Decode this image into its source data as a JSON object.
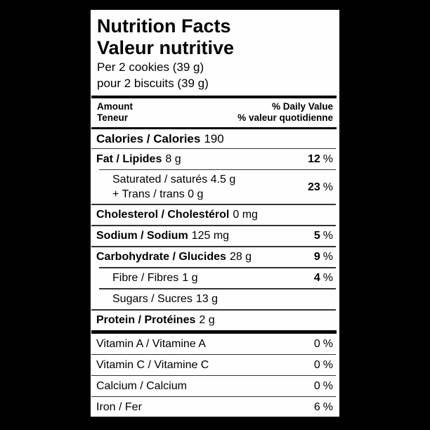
{
  "colors": {
    "background": "#000000",
    "label_bg": "#ffffff",
    "text": "#000000"
  },
  "label": {
    "title_en": "Nutrition Facts",
    "title_fr": "Valeur nutritive",
    "serving_en": "Per 2 cookies (39 g)",
    "serving_fr": "pour 2 biscuits (39 g)",
    "percent_sign": "%",
    "column_header": {
      "amount_en": "Amount",
      "amount_fr": "Teneur",
      "daily_value_en": "% Daily Value",
      "daily_value_fr": "% valeur quotidienne"
    },
    "rows": {
      "calories": {
        "name": "Calories / Calories",
        "amount": "190"
      },
      "fat": {
        "name": "Fat / Lipides",
        "amount": "8 g",
        "dv": "12"
      },
      "saturated": {
        "line1": "Saturated / saturés 4.5 g",
        "line2": "+ Trans / trans 0 g",
        "dv": "23"
      },
      "cholesterol": {
        "name": "Cholesterol / Cholestérol",
        "amount": "0 mg"
      },
      "sodium": {
        "name": "Sodium / Sodium",
        "amount": "125 mg",
        "dv": "5"
      },
      "carbohydrate": {
        "name": "Carbohydrate / Glucides",
        "amount": "28 g",
        "dv": "9"
      },
      "fibre": {
        "name": "Fibre / Fibres",
        "amount": "1 g",
        "dv": "4"
      },
      "sugars": {
        "name": "Sugars / Sucres",
        "amount": "13 g"
      },
      "protein": {
        "name": "Protein / Protéines",
        "amount": "2 g"
      }
    },
    "micronutrients": [
      {
        "name": "Vitamin A / Vitamine A",
        "dv": "0"
      },
      {
        "name": "Vitamin C / Vitamine C",
        "dv": "0"
      },
      {
        "name": "Calcium / Calcium",
        "dv": "0"
      },
      {
        "name": "Iron / Fer",
        "dv": "6"
      }
    ]
  }
}
